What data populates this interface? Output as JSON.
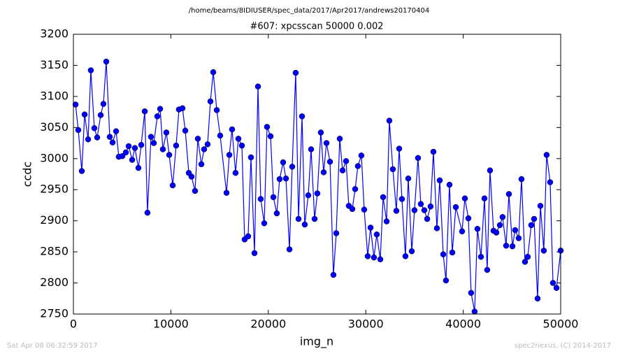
{
  "chart_data": {
    "type": "line",
    "suptitle": "/home/beams/8IDIUSER/spec_data/2017/Apr2017/andrews20170404",
    "title": "#607: xpcsscan 50000 0.002",
    "x_label": "img_n",
    "y_label": "ccdc",
    "footer_left": "Sat Apr 08 06:32:59 2017",
    "footer_right": "spec2nexus, (C) 2014-2017",
    "color": "#0000ff",
    "marker": "circle",
    "xlim": [
      0,
      50000
    ],
    "xticks": [
      0,
      10000,
      20000,
      30000,
      40000,
      50000
    ],
    "ylim": [
      2750,
      3200
    ],
    "yticks": [
      2750,
      2800,
      2850,
      2900,
      2950,
      3000,
      3050,
      3100,
      3150,
      3200
    ],
    "x": [
      220,
      500,
      860,
      1150,
      1510,
      1790,
      2150,
      2440,
      2800,
      3080,
      3370,
      3730,
      4020,
      4380,
      4660,
      5020,
      5380,
      5670,
      6030,
      6310,
      6670,
      6960,
      7320,
      7600,
      7960,
      8250,
      8610,
      8900,
      9180,
      9540,
      9830,
      10190,
      10540,
      10830,
      11190,
      11480,
      11840,
      12120,
      12480,
      12770,
      13130,
      13410,
      13770,
      14060,
      14350,
      14710,
      15060,
      15710,
      16000,
      16280,
      16640,
      16930,
      17290,
      17570,
      17930,
      18220,
      18580,
      18940,
      19220,
      19580,
      19870,
      20230,
      20520,
      20870,
      21160,
      21520,
      21810,
      22170,
      22450,
      22810,
      23100,
      23460,
      23740,
      24100,
      24390,
      24750,
      25030,
      25390,
      25680,
      25970,
      26330,
      26680,
      26970,
      27330,
      27620,
      27980,
      28260,
      28620,
      28910,
      29190,
      29550,
      29840,
      30200,
      30490,
      30840,
      31130,
      31490,
      31780,
      32140,
      32420,
      32780,
      33140,
      33430,
      33710,
      34070,
      34360,
      34720,
      35000,
      35360,
      35650,
      36010,
      36300,
      36650,
      36940,
      37300,
      37590,
      37950,
      38230,
      38590,
      38880,
      39240,
      39880,
      40170,
      40530,
      40810,
      41170,
      41460,
      41820,
      42180,
      42460,
      42750,
      43110,
      43400,
      43760,
      44040,
      44400,
      44690,
      45050,
      45330,
      45690,
      45980,
      46340,
      46620,
      46980,
      47270,
      47630,
      47920,
      48270,
      48560,
      48920,
      49210,
      49570,
      50000
    ],
    "values": [
      3087,
      3046,
      2980,
      3071,
      3031,
      3142,
      3049,
      3034,
      3070,
      3088,
      3156,
      3035,
      3026,
      3044,
      3003,
      3004,
      3010,
      3020,
      2998,
      3017,
      2985,
      3022,
      3076,
      2913,
      3035,
      3025,
      3068,
      3080,
      3015,
      3042,
      3006,
      2957,
      3021,
      3079,
      3081,
      3045,
      2977,
      2971,
      2948,
      3032,
      2991,
      3015,
      3023,
      3092,
      3139,
      3078,
      3037,
      2945,
      3006,
      3047,
      2977,
      3032,
      3021,
      2870,
      2875,
      3002,
      2848,
      3116,
      2935,
      2896,
      3051,
      3036,
      2938,
      2912,
      2967,
      2994,
      2968,
      2854,
      2987,
      3138,
      2903,
      3068,
      2894,
      2941,
      3015,
      2903,
      2944,
      3042,
      2978,
      3025,
      2995,
      2813,
      2880,
      3032,
      2981,
      2996,
      2924,
      2919,
      2951,
      2988,
      3005,
      2918,
      2843,
      2889,
      2841,
      2878,
      2838,
      2938,
      2899,
      3061,
      2983,
      2916,
      3016,
      2935,
      2843,
      2968,
      2851,
      2917,
      3001,
      2927,
      2917,
      2903,
      2923,
      3011,
      2888,
      2965,
      2846,
      2804,
      2958,
      2849,
      2922,
      2883,
      2936,
      2904,
      2784,
      2754,
      2887,
      2842,
      2936,
      2821,
      2981,
      2884,
      2881,
      2893,
      2906,
      2860,
      2943,
      2859,
      2885,
      2872,
      2967,
      2834,
      2842,
      2893,
      2903,
      2775,
      2924,
      2852,
      3006,
      2962,
      2800,
      2792,
      2852
    ]
  }
}
